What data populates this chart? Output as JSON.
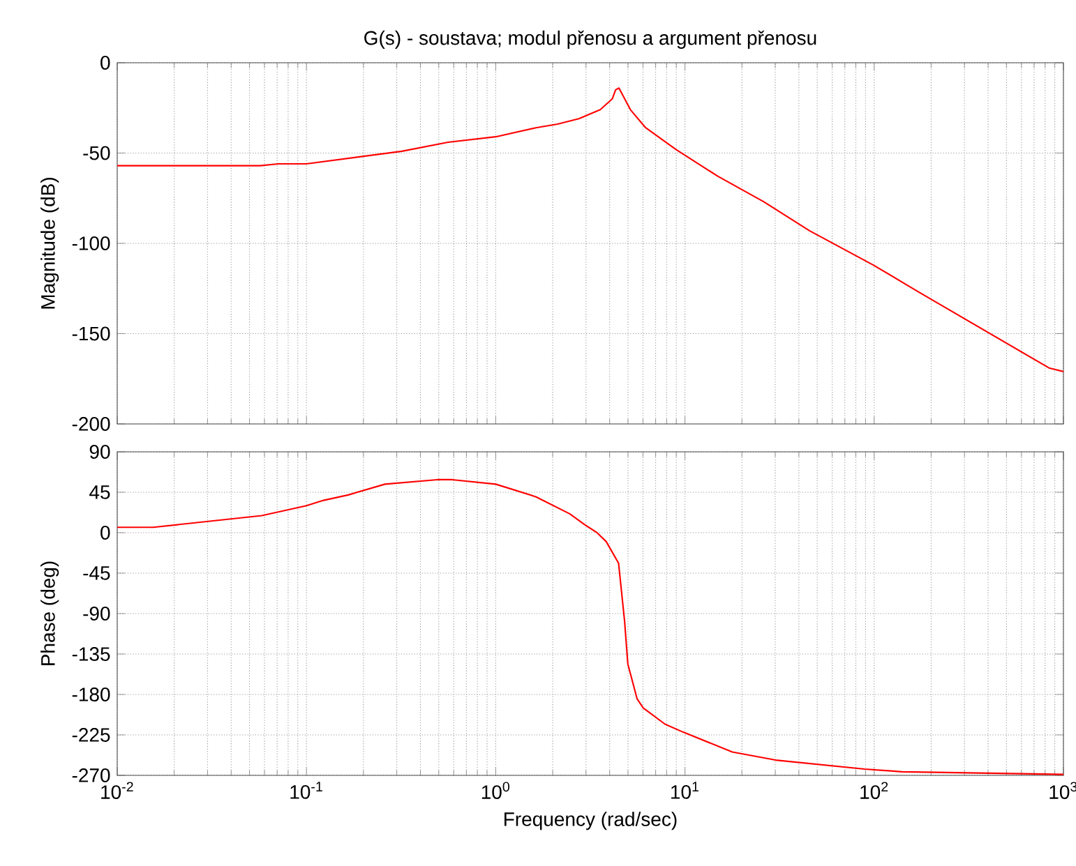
{
  "chart_data": [
    {
      "type": "line",
      "title": "G(s) - soustava; modul přenosu a argument přenosu",
      "ylabel": "Magnitude (dB)",
      "log": "x",
      "grid": true,
      "tick_labels": "y",
      "xlim": [
        0.01,
        1000
      ],
      "ylim": [
        -200,
        0
      ],
      "xticks": [
        {
          "value": 0.01,
          "label": null
        },
        {
          "value": 0.1,
          "label": null
        },
        {
          "value": 1,
          "label": null
        },
        {
          "value": 10,
          "label": null
        },
        {
          "value": 100,
          "label": null
        },
        {
          "value": 1000,
          "label": null
        }
      ],
      "yticks": [
        -200,
        -150,
        -100,
        -50,
        0
      ],
      "series": [
        {
          "color": "#ff0000",
          "x": [
            0.01,
            0.057,
            0.071,
            0.1,
            0.32,
            0.56,
            1,
            1.63,
            2.12,
            2.75,
            3.57,
            4.13,
            4.3,
            4.48,
            5.15,
            6.2,
            8.96,
            15,
            26.1,
            45.5,
            98.9,
            172,
            839,
            1000
          ],
          "values": [
            -57,
            -57,
            -56,
            -56,
            -49,
            -44,
            -41,
            -36,
            -34,
            -31,
            -26,
            -20,
            -15,
            -14,
            -26,
            -36,
            -48,
            -63,
            -77,
            -93,
            -112,
            -127,
            -169,
            -171
          ]
        }
      ]
    },
    {
      "type": "line",
      "xlabel": "Frequency  (rad/sec)",
      "ylabel": "Phase (deg)",
      "log": "x",
      "grid": true,
      "xlim": [
        0.01,
        1000
      ],
      "ylim": [
        -270,
        90
      ],
      "xticks": [
        {
          "value": 0.01,
          "label": "10$^{-2}$"
        },
        {
          "value": 0.1,
          "label": "10$^{-1}$"
        },
        {
          "value": 1,
          "label": "10$^{0}$"
        },
        {
          "value": 10,
          "label": "10$^{1}$"
        },
        {
          "value": 100,
          "label": "10$^{2}$"
        },
        {
          "value": 1000,
          "label": "10$^{3}$"
        }
      ],
      "yticks": [
        -270,
        -225,
        -180,
        -135,
        -90,
        -45,
        0,
        45,
        90
      ],
      "series": [
        {
          "color": "#ff0000",
          "x": [
            0.01,
            0.0155,
            0.058,
            0.1,
            0.123,
            0.166,
            0.26,
            0.49,
            0.59,
            1,
            1.63,
            2.46,
            2.95,
            3.43,
            3.84,
            4.46,
            4.8,
            4.99,
            5.59,
            6.02,
            7.84,
            9.8,
            17.8,
            30.1,
            89,
            140,
            1000
          ],
          "values": [
            6,
            6,
            19,
            30,
            36,
            42,
            54,
            59,
            59,
            54,
            40,
            21,
            9,
            0,
            -10,
            -34,
            -99,
            -146,
            -185,
            -195,
            -213,
            -222,
            -244,
            -253,
            -263,
            -266,
            -269
          ]
        }
      ]
    }
  ]
}
